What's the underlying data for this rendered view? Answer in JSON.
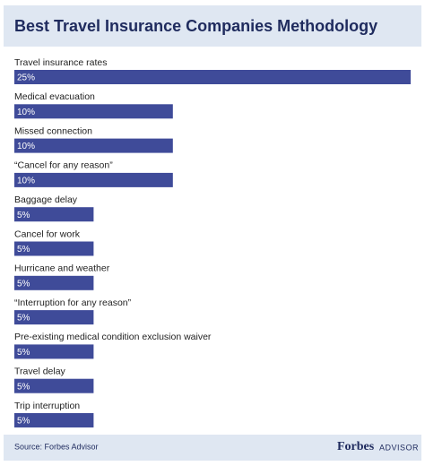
{
  "chart_data": {
    "type": "bar",
    "orientation": "horizontal",
    "title": "Best Travel Insurance Companies Methodology",
    "categories": [
      "Travel insurance rates",
      "Medical evacuation",
      "Missed connection",
      "“Cancel for any reason”",
      "Baggage delay",
      "Cancel for work",
      "Hurricane and weather",
      "“Interruption for any reason”",
      "Pre-existing medical condition exclusion waiver",
      "Travel delay",
      "Trip interruption"
    ],
    "values": [
      25,
      10,
      10,
      10,
      5,
      5,
      5,
      5,
      5,
      5,
      5
    ],
    "value_labels": [
      "25%",
      "10%",
      "10%",
      "10%",
      "5%",
      "5%",
      "5%",
      "5%",
      "5%",
      "5%",
      "5%"
    ],
    "color": "#3f4b99",
    "source": "Source: Forbes Advisor",
    "brand": "Forbes",
    "brand_sub": "ADVISOR"
  }
}
